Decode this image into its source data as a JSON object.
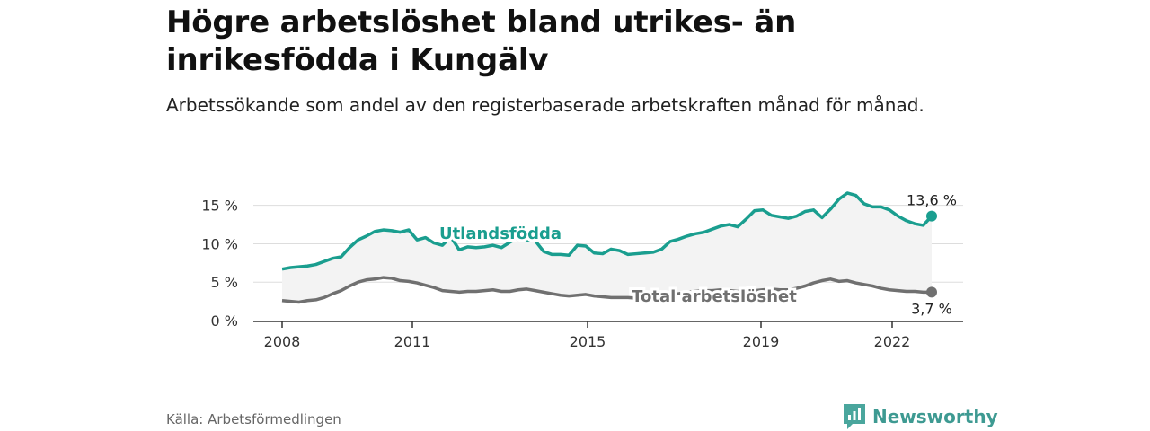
{
  "title": "Högre arbetslöshet bland utrikes- än inrikesfödda i Kungälv",
  "subtitle": "Arbetssökande som andel av den registerbaserade arbetskraften månad för månad.",
  "source": "Källa: Arbetsförmedlingen",
  "brand": {
    "name": "Newsworthy",
    "icon": "newsworthy-logo-icon"
  },
  "colors": {
    "foreign": "#1a9e8f",
    "total": "#707070",
    "area": "#f3f3f3",
    "grid": "#dddddd"
  },
  "chart_data": {
    "type": "line",
    "xlim": [
      2008,
      2023.1
    ],
    "ylim": [
      0,
      18
    ],
    "x_ticks": [
      2008,
      2011,
      2015,
      2019,
      2022
    ],
    "y_ticks": [
      {
        "value": 0,
        "label": "0 %"
      },
      {
        "value": 5,
        "label": "5 %"
      },
      {
        "value": 10,
        "label": "10 %"
      },
      {
        "value": 15,
        "label": "15 %"
      }
    ],
    "series": [
      {
        "name": "Utlandsfödda",
        "end_label": "13,6 %",
        "points": [
          [
            2008.0,
            6.7
          ],
          [
            2008.2,
            6.9
          ],
          [
            2008.4,
            7.0
          ],
          [
            2008.6,
            7.1
          ],
          [
            2008.8,
            7.3
          ],
          [
            2009.0,
            7.7
          ],
          [
            2009.2,
            8.1
          ],
          [
            2009.4,
            8.3
          ],
          [
            2009.6,
            9.5
          ],
          [
            2009.8,
            10.5
          ],
          [
            2010.0,
            11.0
          ],
          [
            2010.2,
            11.6
          ],
          [
            2010.4,
            11.8
          ],
          [
            2010.6,
            11.7
          ],
          [
            2010.8,
            11.5
          ],
          [
            2011.0,
            11.8
          ],
          [
            2011.2,
            10.5
          ],
          [
            2011.4,
            10.8
          ],
          [
            2011.6,
            10.1
          ],
          [
            2011.8,
            9.8
          ],
          [
            2012.0,
            10.9
          ],
          [
            2012.2,
            9.2
          ],
          [
            2012.4,
            9.6
          ],
          [
            2012.6,
            9.5
          ],
          [
            2012.8,
            9.6
          ],
          [
            2013.0,
            9.8
          ],
          [
            2013.2,
            9.5
          ],
          [
            2013.4,
            10.2
          ],
          [
            2013.6,
            10.8
          ],
          [
            2013.8,
            10.5
          ],
          [
            2014.0,
            10.4
          ],
          [
            2014.2,
            9.0
          ],
          [
            2014.4,
            8.6
          ],
          [
            2014.6,
            8.6
          ],
          [
            2014.8,
            8.5
          ],
          [
            2015.0,
            9.8
          ],
          [
            2015.2,
            9.7
          ],
          [
            2015.4,
            8.8
          ],
          [
            2015.6,
            8.7
          ],
          [
            2015.8,
            9.3
          ],
          [
            2016.0,
            9.1
          ],
          [
            2016.2,
            8.6
          ],
          [
            2016.4,
            8.7
          ],
          [
            2016.6,
            8.8
          ],
          [
            2016.8,
            8.9
          ],
          [
            2017.0,
            9.3
          ],
          [
            2017.2,
            10.3
          ],
          [
            2017.4,
            10.6
          ],
          [
            2017.6,
            11.0
          ],
          [
            2017.8,
            11.3
          ],
          [
            2018.0,
            11.5
          ],
          [
            2018.2,
            11.9
          ],
          [
            2018.4,
            12.3
          ],
          [
            2018.6,
            12.5
          ],
          [
            2018.8,
            12.2
          ],
          [
            2019.0,
            13.2
          ],
          [
            2019.2,
            14.3
          ],
          [
            2019.4,
            14.4
          ],
          [
            2019.6,
            13.7
          ],
          [
            2019.8,
            13.5
          ],
          [
            2020.0,
            13.3
          ],
          [
            2020.2,
            13.6
          ],
          [
            2020.4,
            14.2
          ],
          [
            2020.6,
            14.4
          ],
          [
            2020.8,
            13.4
          ],
          [
            2021.0,
            14.5
          ],
          [
            2021.2,
            15.8
          ],
          [
            2021.4,
            16.6
          ],
          [
            2021.6,
            16.3
          ],
          [
            2021.8,
            15.2
          ],
          [
            2022.0,
            14.8
          ],
          [
            2022.2,
            14.8
          ],
          [
            2022.4,
            14.4
          ],
          [
            2022.6,
            13.6
          ],
          [
            2022.8,
            13.0
          ],
          [
            2023.0,
            12.6
          ],
          [
            2023.2,
            12.4
          ],
          [
            2023.4,
            13.6
          ]
        ]
      },
      {
        "name": "Total arbetslöshet",
        "end_label": "3,7 %",
        "points": [
          [
            2008.0,
            2.6
          ],
          [
            2008.2,
            2.5
          ],
          [
            2008.4,
            2.4
          ],
          [
            2008.6,
            2.6
          ],
          [
            2008.8,
            2.7
          ],
          [
            2009.0,
            3.0
          ],
          [
            2009.2,
            3.5
          ],
          [
            2009.4,
            3.9
          ],
          [
            2009.6,
            4.5
          ],
          [
            2009.8,
            5.0
          ],
          [
            2010.0,
            5.3
          ],
          [
            2010.2,
            5.4
          ],
          [
            2010.4,
            5.6
          ],
          [
            2010.6,
            5.5
          ],
          [
            2010.8,
            5.2
          ],
          [
            2011.0,
            5.1
          ],
          [
            2011.2,
            4.9
          ],
          [
            2011.4,
            4.6
          ],
          [
            2011.6,
            4.3
          ],
          [
            2011.8,
            3.9
          ],
          [
            2012.0,
            3.8
          ],
          [
            2012.2,
            3.7
          ],
          [
            2012.4,
            3.8
          ],
          [
            2012.6,
            3.8
          ],
          [
            2012.8,
            3.9
          ],
          [
            2013.0,
            4.0
          ],
          [
            2013.2,
            3.8
          ],
          [
            2013.4,
            3.8
          ],
          [
            2013.6,
            4.0
          ],
          [
            2013.8,
            4.1
          ],
          [
            2014.0,
            3.9
          ],
          [
            2014.2,
            3.7
          ],
          [
            2014.4,
            3.5
          ],
          [
            2014.6,
            3.3
          ],
          [
            2014.8,
            3.2
          ],
          [
            2015.0,
            3.3
          ],
          [
            2015.2,
            3.4
          ],
          [
            2015.4,
            3.2
          ],
          [
            2015.6,
            3.1
          ],
          [
            2015.8,
            3.0
          ],
          [
            2016.0,
            3.0
          ],
          [
            2016.2,
            3.0
          ],
          [
            2016.4,
            2.9
          ],
          [
            2016.6,
            2.9
          ],
          [
            2016.8,
            3.0
          ],
          [
            2017.0,
            3.1
          ],
          [
            2017.2,
            3.3
          ],
          [
            2017.4,
            3.5
          ],
          [
            2017.6,
            3.7
          ],
          [
            2017.8,
            3.8
          ],
          [
            2018.0,
            3.9
          ],
          [
            2018.2,
            3.9
          ],
          [
            2018.4,
            4.0
          ],
          [
            2018.6,
            3.9
          ],
          [
            2018.8,
            3.8
          ],
          [
            2019.0,
            3.8
          ],
          [
            2019.2,
            3.9
          ],
          [
            2019.4,
            4.0
          ],
          [
            2019.6,
            4.1
          ],
          [
            2019.8,
            4.0
          ],
          [
            2020.0,
            4.0
          ],
          [
            2020.2,
            4.2
          ],
          [
            2020.4,
            4.5
          ],
          [
            2020.6,
            4.9
          ],
          [
            2020.8,
            5.2
          ],
          [
            2021.0,
            5.4
          ],
          [
            2021.2,
            5.1
          ],
          [
            2021.4,
            5.2
          ],
          [
            2021.6,
            4.9
          ],
          [
            2021.8,
            4.7
          ],
          [
            2022.0,
            4.5
          ],
          [
            2022.2,
            4.2
          ],
          [
            2022.4,
            4.0
          ],
          [
            2022.6,
            3.9
          ],
          [
            2022.8,
            3.8
          ],
          [
            2023.0,
            3.8
          ],
          [
            2023.2,
            3.7
          ],
          [
            2023.4,
            3.7
          ]
        ]
      }
    ]
  }
}
